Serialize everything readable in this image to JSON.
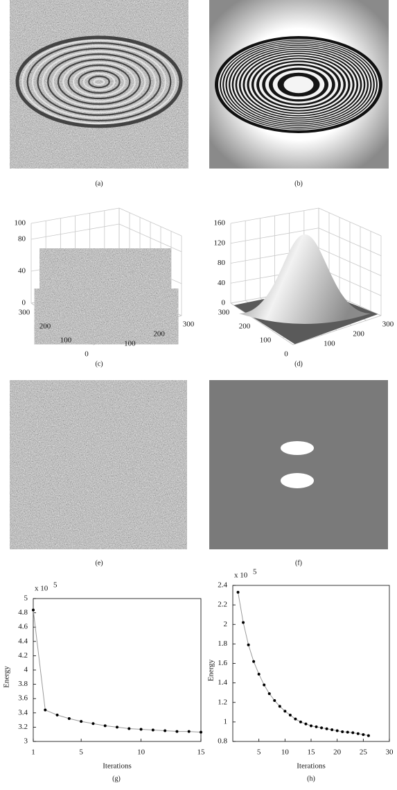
{
  "captions": [
    "(a)",
    "(b)",
    "(c)",
    "(d)",
    "(e)",
    "(f)",
    "(g)",
    "(h)"
  ],
  "surface_c": {
    "zticks": [
      0,
      40,
      80,
      100
    ],
    "left_ticks": [
      300,
      200,
      100,
      0
    ],
    "right_ticks": [
      100,
      200,
      300
    ]
  },
  "surface_d": {
    "zticks": [
      0,
      40,
      80,
      120,
      160
    ],
    "left_ticks": [
      300,
      200,
      100,
      0
    ],
    "right_ticks": [
      100,
      200,
      300
    ]
  },
  "chart_data": [
    {
      "type": "line",
      "x": [
        1,
        2,
        3,
        4,
        5,
        6,
        7,
        8,
        9,
        10,
        11,
        12,
        13,
        14,
        15
      ],
      "values": [
        4.84,
        3.44,
        3.37,
        3.32,
        3.28,
        3.25,
        3.22,
        3.2,
        3.18,
        3.17,
        3.16,
        3.15,
        3.14,
        3.14,
        3.13
      ],
      "color": "#9a9a9a",
      "marker_color": "#000000",
      "xlim": [
        1,
        15
      ],
      "xticks": [
        1,
        5,
        10,
        15
      ],
      "ylim": [
        3,
        5
      ],
      "yticks": [
        3,
        3.2,
        3.4,
        3.6,
        3.8,
        4,
        4.2,
        4.4,
        4.6,
        4.8,
        5
      ],
      "xlabel": "Iterations",
      "ylabel": "Energy",
      "y_multiplier": "x 10",
      "y_multiplier_power": "5"
    },
    {
      "type": "line",
      "x": [
        1,
        2,
        3,
        4,
        5,
        6,
        7,
        8,
        9,
        10,
        11,
        12,
        13,
        14,
        15,
        16,
        17,
        18,
        19,
        20,
        21,
        22,
        23,
        24,
        25,
        26
      ],
      "values": [
        2.33,
        2.02,
        1.79,
        1.62,
        1.49,
        1.38,
        1.29,
        1.22,
        1.16,
        1.11,
        1.07,
        1.03,
        1.0,
        0.98,
        0.96,
        0.95,
        0.94,
        0.93,
        0.92,
        0.91,
        0.9,
        0.895,
        0.89,
        0.88,
        0.87,
        0.86
      ],
      "color": "#9a9a9a",
      "marker_color": "#000000",
      "xlim": [
        0,
        30
      ],
      "xticks": [
        5,
        10,
        15,
        20,
        25,
        30
      ],
      "ylim": [
        0.8,
        2.4
      ],
      "yticks": [
        0.8,
        1,
        1.2,
        1.4,
        1.6,
        1.8,
        2,
        2.2,
        2.4
      ],
      "xlabel": "Iterations",
      "ylabel": "Energy",
      "y_multiplier": "x 10",
      "y_multiplier_power": "5"
    }
  ]
}
